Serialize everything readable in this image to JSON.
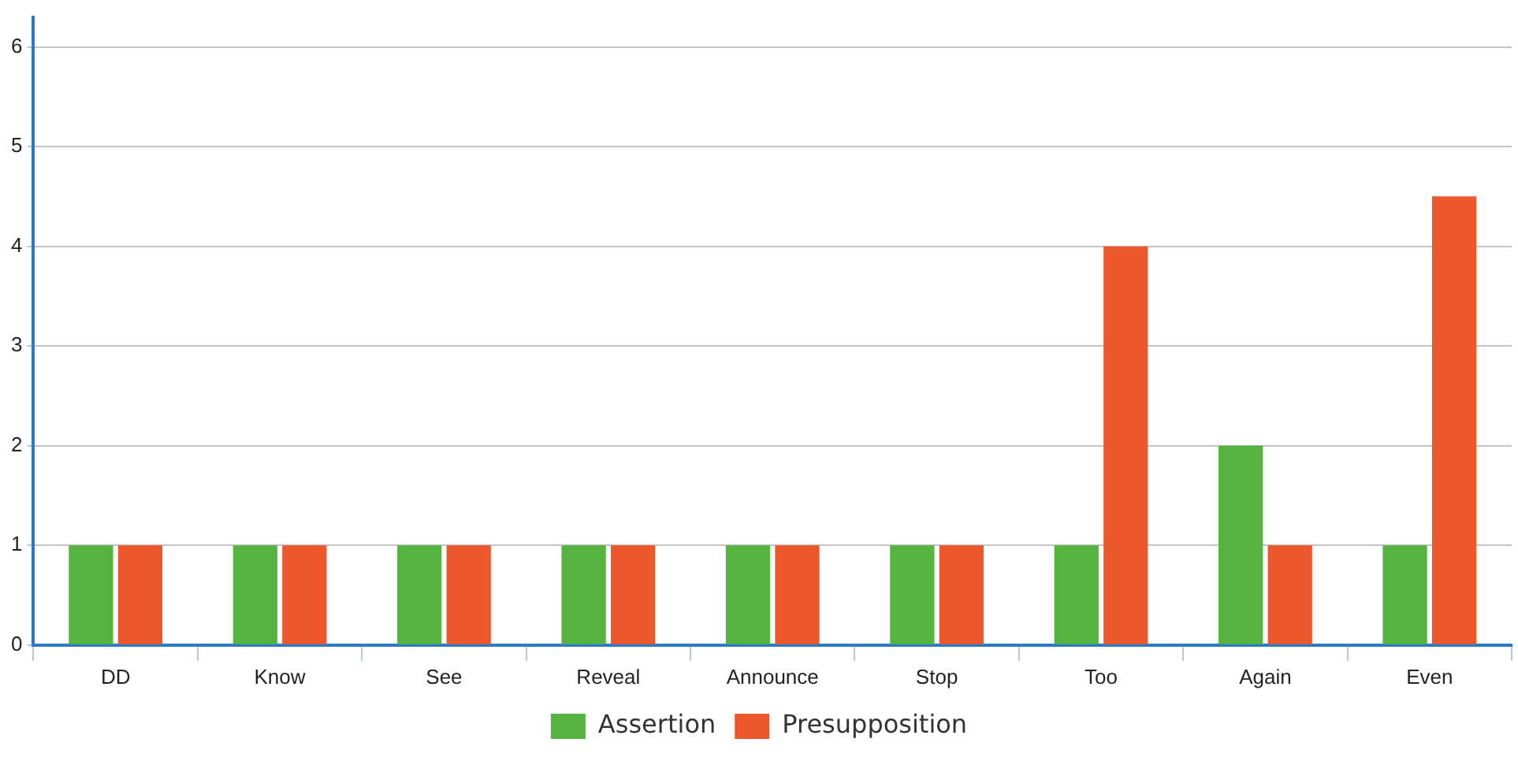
{
  "chart_data": {
    "type": "bar",
    "categories": [
      "DD",
      "Know",
      "See",
      "Reveal",
      "Announce",
      "Stop",
      "Too",
      "Again",
      "Even"
    ],
    "series": [
      {
        "name": "Assertion",
        "color": "#55b440",
        "values": [
          1,
          1,
          1,
          1,
          1,
          1,
          1,
          2,
          1
        ]
      },
      {
        "name": "Presupposition",
        "color": "#ec572c",
        "values": [
          1,
          1,
          1,
          1,
          1,
          1,
          4,
          1,
          4.5
        ]
      }
    ],
    "ylim": [
      0,
      6.3
    ],
    "yticks": [
      0,
      1,
      2,
      3,
      4,
      5,
      6
    ],
    "grid": "y",
    "legend": "bottom"
  }
}
